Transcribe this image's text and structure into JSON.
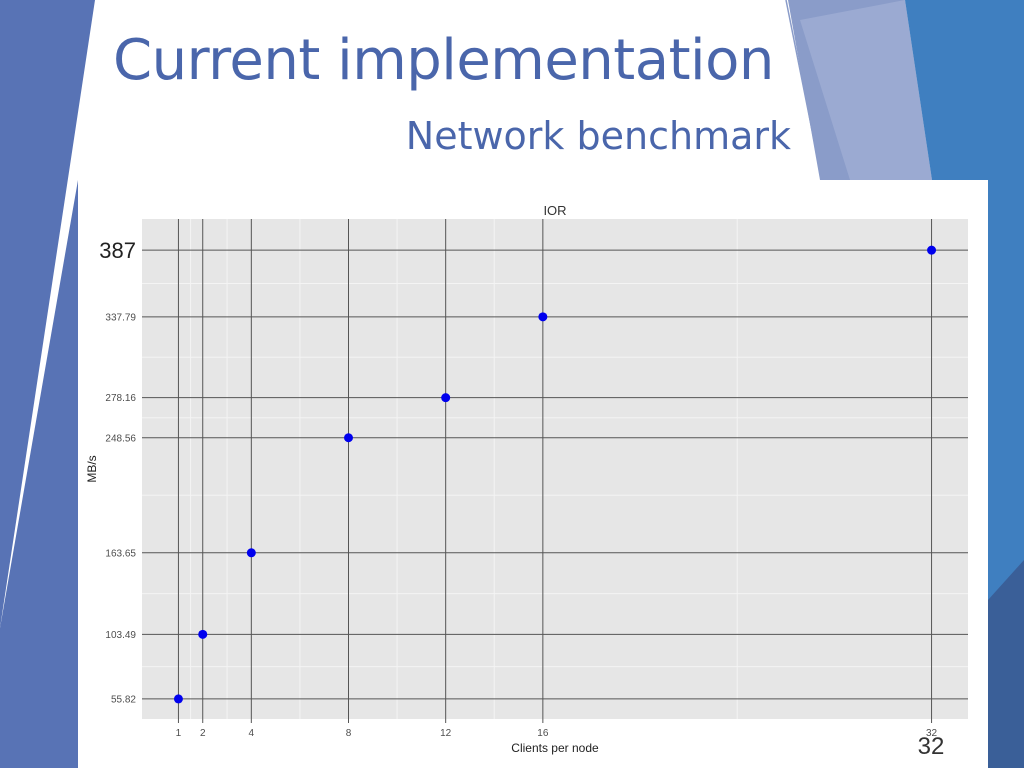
{
  "slide": {
    "title": "Current implementation",
    "subtitle": "Network benchmark",
    "page_number": "32",
    "colors": {
      "title": "#4a66ab",
      "band_dark": "#5873b5",
      "band_mid": "#7d93c8",
      "band_blue": "#3f7fc0",
      "plot_bg": "#e6e6e6",
      "point": "#0000ee"
    }
  },
  "chart_data": {
    "type": "scatter",
    "title": "IOR",
    "xlabel": "Clients per node",
    "ylabel": "MB/s",
    "x_ticks": [
      1,
      2,
      4,
      8,
      12,
      16,
      32
    ],
    "y_ticks": [
      55.82,
      103.49,
      163.65,
      248.56,
      278.16,
      337.79,
      387
    ],
    "y_tick_labels": [
      "55.82",
      "103.49",
      "163.65",
      "248.56",
      "278.16",
      "337.79",
      "387"
    ],
    "xlim": [
      -0.5,
      33.5
    ],
    "ylim": [
      41,
      410
    ],
    "grid": true,
    "legend": "none",
    "points": [
      {
        "x": 1,
        "y": 55.82
      },
      {
        "x": 2,
        "y": 103.49
      },
      {
        "x": 4,
        "y": 163.65
      },
      {
        "x": 8,
        "y": 248.56
      },
      {
        "x": 12,
        "y": 278.16
      },
      {
        "x": 16,
        "y": 337.79
      },
      {
        "x": 32,
        "y": 387
      }
    ]
  }
}
